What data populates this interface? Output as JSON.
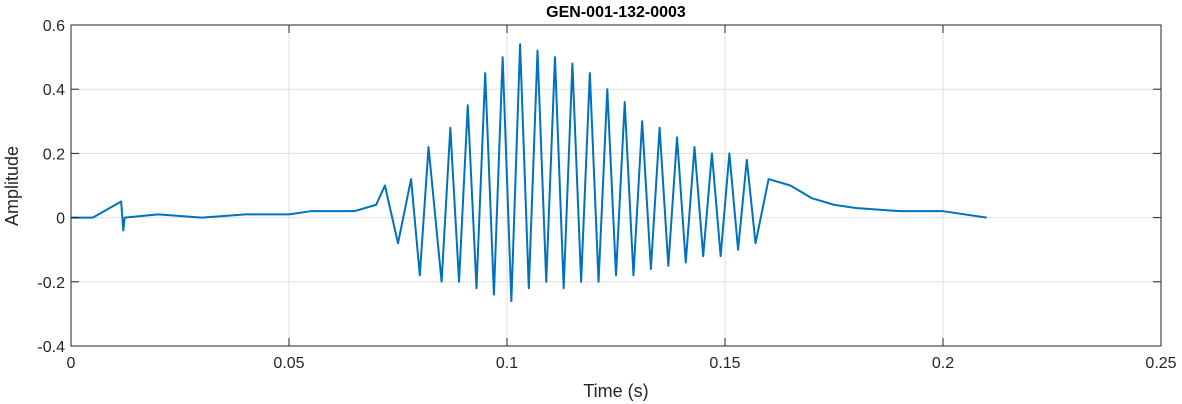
{
  "chart_data": {
    "type": "line",
    "title": "GEN-001-132-0003",
    "xlabel": "Time (s)",
    "ylabel": "Amplitude",
    "xlim": [
      0,
      0.25
    ],
    "ylim": [
      -0.4,
      0.6
    ],
    "xticks": [
      0,
      0.05,
      0.1,
      0.15,
      0.2,
      0.25
    ],
    "xtick_labels": [
      "0",
      "0.05",
      "0.1",
      "0.15",
      "0.2",
      "0.25"
    ],
    "yticks": [
      -0.4,
      -0.2,
      0,
      0.2,
      0.4,
      0.6
    ],
    "ytick_labels": [
      "-0.4",
      "-0.2",
      "0",
      "0.2",
      "0.4",
      "0.6"
    ],
    "grid": true,
    "line_color": "#0072bd",
    "series": [
      {
        "x": [
          0,
          0.005,
          0.0115,
          0.012,
          0.0123,
          0.02,
          0.03,
          0.04,
          0.05,
          0.055,
          0.06,
          0.065,
          0.07,
          0.072,
          0.075,
          0.078,
          0.08,
          0.082,
          0.085,
          0.087,
          0.089,
          0.091,
          0.093,
          0.095,
          0.097,
          0.099,
          0.101,
          0.103,
          0.105,
          0.107,
          0.109,
          0.111,
          0.113,
          0.115,
          0.117,
          0.119,
          0.121,
          0.123,
          0.125,
          0.127,
          0.129,
          0.131,
          0.133,
          0.135,
          0.137,
          0.139,
          0.141,
          0.143,
          0.145,
          0.147,
          0.149,
          0.151,
          0.153,
          0.155,
          0.157,
          0.16,
          0.165,
          0.17,
          0.175,
          0.18,
          0.19,
          0.2,
          0.21
        ],
        "y": [
          0.0,
          0.0,
          0.05,
          -0.04,
          0.0,
          0.01,
          0.0,
          0.01,
          0.01,
          0.02,
          0.02,
          0.02,
          0.04,
          0.1,
          -0.08,
          0.12,
          -0.18,
          0.22,
          -0.2,
          0.28,
          -0.2,
          0.35,
          -0.22,
          0.45,
          -0.24,
          0.5,
          -0.26,
          0.54,
          -0.22,
          0.52,
          -0.2,
          0.5,
          -0.22,
          0.48,
          -0.2,
          0.45,
          -0.2,
          0.4,
          -0.18,
          0.36,
          -0.18,
          0.3,
          -0.16,
          0.28,
          -0.15,
          0.25,
          -0.14,
          0.22,
          -0.12,
          0.2,
          -0.12,
          0.2,
          -0.1,
          0.18,
          -0.08,
          0.12,
          0.1,
          0.06,
          0.04,
          0.03,
          0.02,
          0.02,
          0.0
        ]
      }
    ]
  }
}
